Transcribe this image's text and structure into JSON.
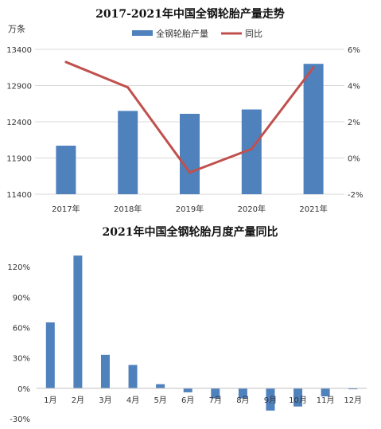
{
  "chart_data": [
    {
      "type": "bar",
      "title": "2017-2021年中国全钢轮胎产量走势",
      "unit_label": "万条",
      "categories": [
        "2017年",
        "2018年",
        "2019年",
        "2020年",
        "2021年"
      ],
      "series": [
        {
          "name": "全钢轮胎产量",
          "type": "bar",
          "axis": "left",
          "color": "#4f81bd",
          "values": [
            12070,
            12550,
            12510,
            12570,
            13200
          ]
        },
        {
          "name": "同比",
          "type": "line",
          "axis": "right",
          "color": "#c0504d",
          "values": [
            5.3,
            3.9,
            -0.8,
            0.5,
            5.0
          ]
        }
      ],
      "ylim_left": [
        11400,
        13400
      ],
      "yticks_left": [
        "11400",
        "11900",
        "12400",
        "12900",
        "13400"
      ],
      "ylim_right": [
        -2,
        6
      ],
      "yticks_right": [
        "-2%",
        "0%",
        "2%",
        "4%",
        "6%"
      ],
      "grid": true,
      "legend": "top-center"
    },
    {
      "type": "bar",
      "title": "2021年中国全钢轮胎月度产量同比",
      "categories": [
        "1月",
        "2月",
        "3月",
        "4月",
        "5月",
        "6月",
        "7月",
        "8月",
        "9月",
        "10月",
        "11月",
        "12月"
      ],
      "series": [
        {
          "color": "#4f81bd",
          "values": [
            65,
            131,
            33,
            23,
            4,
            -4,
            -10,
            -10,
            -22,
            -18,
            -8,
            -1
          ]
        }
      ],
      "ylim": [
        -30,
        135
      ],
      "yticks": [
        "-30%",
        "0%",
        "30%",
        "60%",
        "90%",
        "120%"
      ],
      "grid": false
    }
  ]
}
